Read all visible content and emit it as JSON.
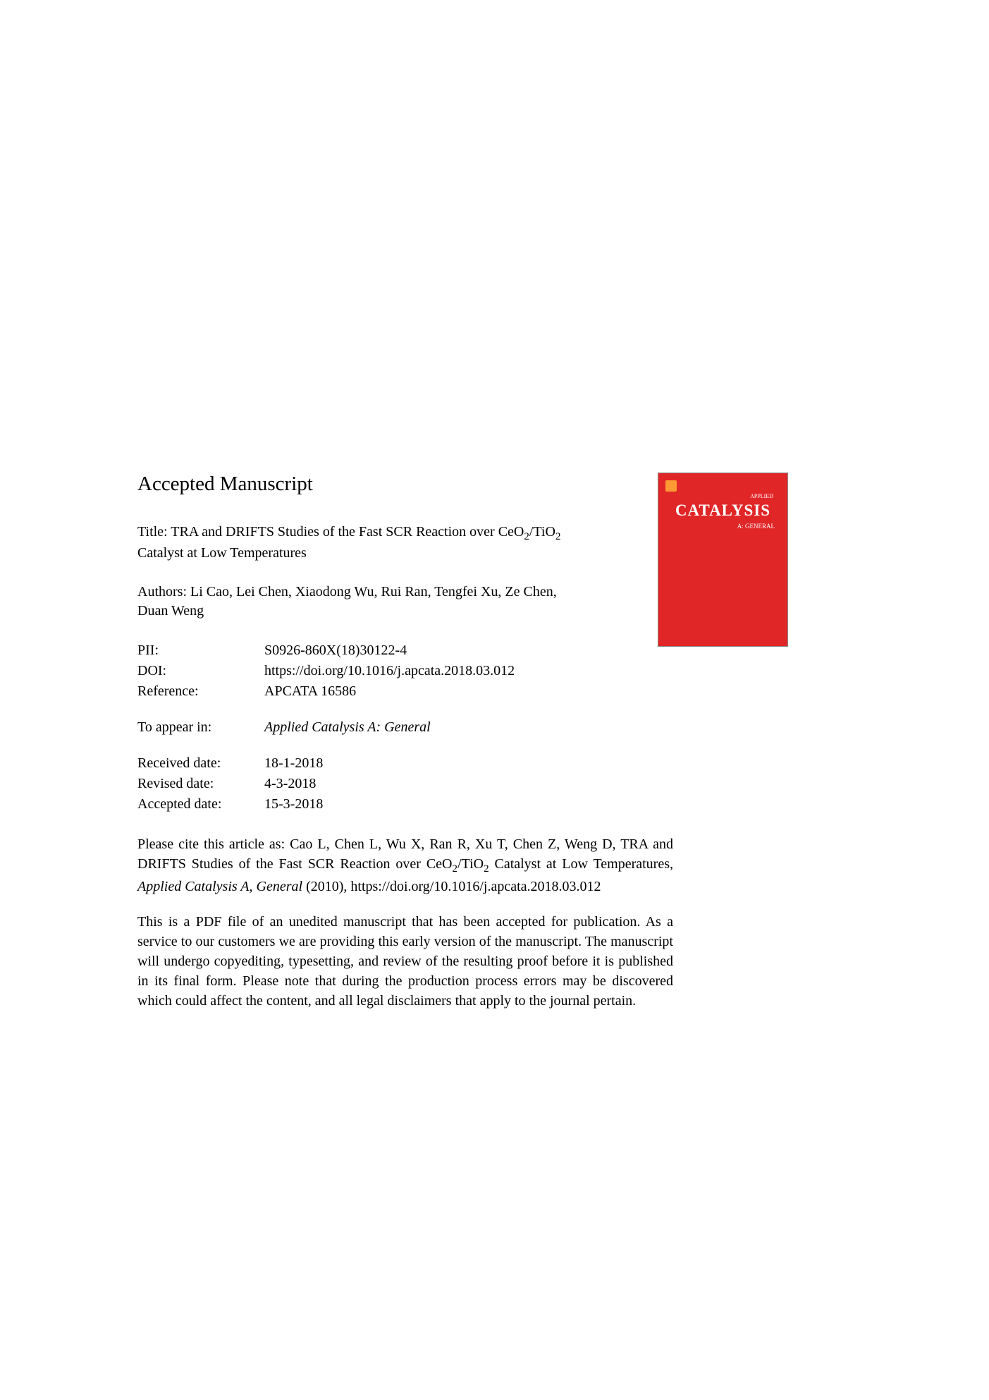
{
  "heading": "Accepted Manuscript",
  "title": {
    "prefix": "Title: TRA and DRIFTS Studies of the Fast SCR Reaction over CeO",
    "sub1": "2",
    "mid": "/TiO",
    "sub2": "2",
    "suffix": " Catalyst at Low Temperatures"
  },
  "authors": "Authors: Li Cao, Lei Chen, Xiaodong Wu, Rui Ran, Tengfei Xu, Ze Chen, Duan Weng",
  "journal_cover": {
    "applied_text": "APPLIED",
    "main_title": "CATALYSIS",
    "subtitle": "A: GENERAL",
    "bg_color": "#e12628",
    "text_color": "#ffffff"
  },
  "metadata": {
    "pii": {
      "label": "PII:",
      "value": "S0926-860X(18)30122-4"
    },
    "doi": {
      "label": "DOI:",
      "value": "https://doi.org/10.1016/j.apcata.2018.03.012"
    },
    "reference": {
      "label": "Reference:",
      "value": "APCATA 16586"
    }
  },
  "appear": {
    "label": "To appear in:",
    "value": "Applied Catalysis A: General"
  },
  "dates": {
    "received": {
      "label": "Received date:",
      "value": "18-1-2018"
    },
    "revised": {
      "label": "Revised date:",
      "value": "4-3-2018"
    },
    "accepted": {
      "label": "Accepted date:",
      "value": "15-3-2018"
    }
  },
  "citation": {
    "part1": "Please cite this article as: Cao L, Chen L, Wu X, Ran R, Xu T, Chen Z, Weng D, TRA and DRIFTS Studies of the Fast SCR Reaction over CeO",
    "sub1": "2",
    "part2": "/TiO",
    "sub2": "2",
    "part3": " Catalyst at Low Temperatures, ",
    "journal": "Applied Catalysis A, General",
    "part4": " (2010), https://doi.org/10.1016/j.apcata.2018.03.012"
  },
  "disclaimer": "This is a PDF file of an unedited manuscript that has been accepted for publication. As a service to our customers we are providing this early version of the manuscript. The manuscript will undergo copyediting, typesetting, and review of the resulting proof before it is published in its final form. Please note that during the production process errors may be discovered which could affect the content, and all legal disclaimers that apply to the journal pertain.",
  "colors": {
    "page_bg": "#ffffff",
    "text": "#000000",
    "cover_bg": "#e12628",
    "cover_text": "#ffffff"
  },
  "typography": {
    "heading_size": 29,
    "body_size": 20,
    "font_family": "Times New Roman"
  }
}
